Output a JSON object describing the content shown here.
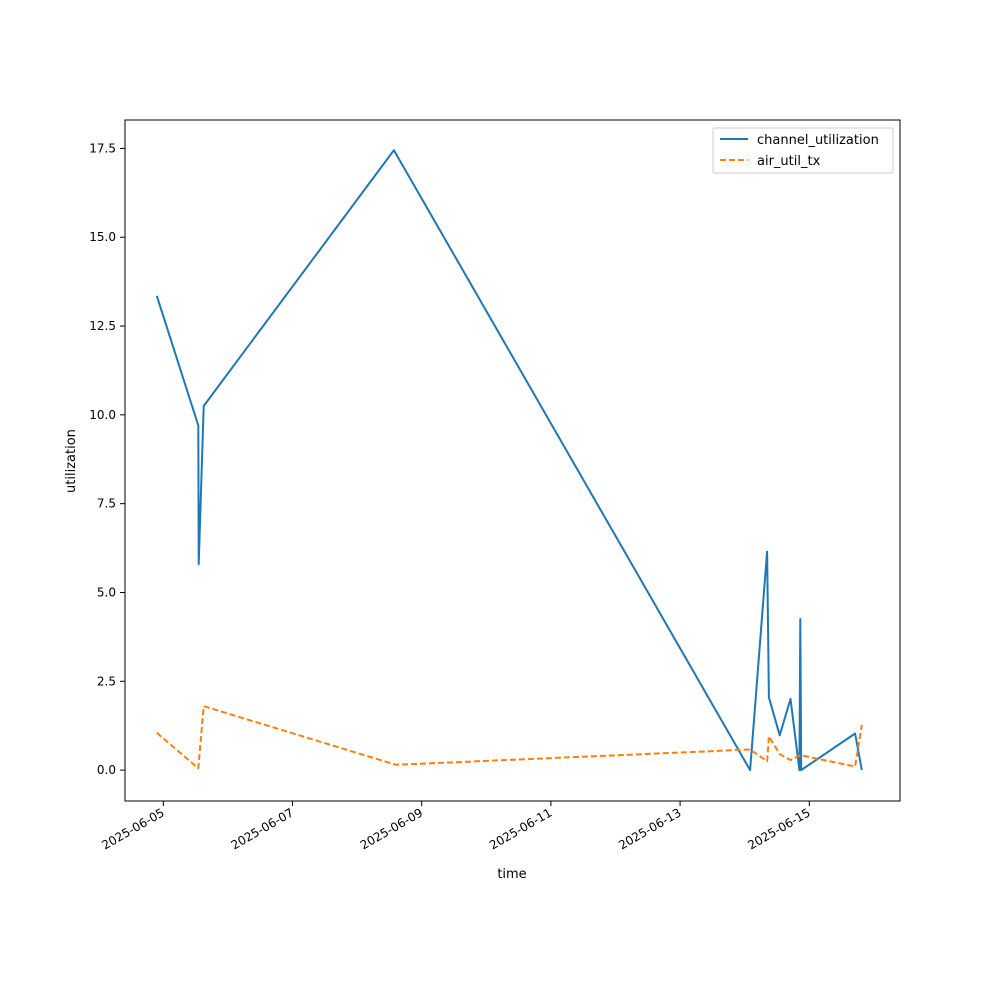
{
  "chart_data": {
    "type": "line",
    "title": "",
    "xlabel": "time",
    "ylabel": "utilization",
    "x_ticks": [
      "2025-06-05",
      "2025-06-07",
      "2025-06-09",
      "2025-06-11",
      "2025-06-13",
      "2025-06-15"
    ],
    "y_ticks": [
      "0.0",
      "2.5",
      "5.0",
      "7.5",
      "10.0",
      "12.5",
      "15.0",
      "17.5"
    ],
    "xlim": [
      "2025-06-04T09:46",
      "2025-06-16T09:42"
    ],
    "ylim": [
      -0.87,
      18.3
    ],
    "grid": false,
    "legend": "top-right",
    "series": [
      {
        "name": "channel_utilization",
        "color": "#1f77b4",
        "dash": "solid",
        "points": [
          {
            "x": "2025-06-04T21:35",
            "y": 13.35
          },
          {
            "x": "2025-06-05T13:00",
            "y": 9.7
          },
          {
            "x": "2025-06-05T13:10",
            "y": 5.8
          },
          {
            "x": "2025-06-05T15:00",
            "y": 10.25
          },
          {
            "x": "2025-06-08T13:40",
            "y": 17.45
          },
          {
            "x": "2025-06-14T02:00",
            "y": 0.0
          },
          {
            "x": "2025-06-14T08:20",
            "y": 6.15
          },
          {
            "x": "2025-06-14T09:00",
            "y": 2.05
          },
          {
            "x": "2025-06-14T13:00",
            "y": 0.98
          },
          {
            "x": "2025-06-14T17:00",
            "y": 2.0
          },
          {
            "x": "2025-06-14T20:20",
            "y": 0.0
          },
          {
            "x": "2025-06-14T20:40",
            "y": 4.25
          },
          {
            "x": "2025-06-14T21:00",
            "y": 0.0
          },
          {
            "x": "2025-06-15T17:00",
            "y": 1.03
          },
          {
            "x": "2025-06-15T19:30",
            "y": 0.0
          }
        ]
      },
      {
        "name": "air_util_tx",
        "color": "#ff7f0e",
        "dash": "dashed",
        "points": [
          {
            "x": "2025-06-04T21:35",
            "y": 1.05
          },
          {
            "x": "2025-06-05T13:00",
            "y": 0.05
          },
          {
            "x": "2025-06-05T15:00",
            "y": 1.8
          },
          {
            "x": "2025-06-08T14:30",
            "y": 0.15
          },
          {
            "x": "2025-06-14T02:00",
            "y": 0.58
          },
          {
            "x": "2025-06-14T08:20",
            "y": 0.25
          },
          {
            "x": "2025-06-14T09:00",
            "y": 0.95
          },
          {
            "x": "2025-06-14T13:00",
            "y": 0.45
          },
          {
            "x": "2025-06-14T17:00",
            "y": 0.28
          },
          {
            "x": "2025-06-14T20:40",
            "y": 0.42
          },
          {
            "x": "2025-06-15T17:00",
            "y": 0.1
          },
          {
            "x": "2025-06-15T19:30",
            "y": 1.27
          }
        ]
      }
    ]
  }
}
